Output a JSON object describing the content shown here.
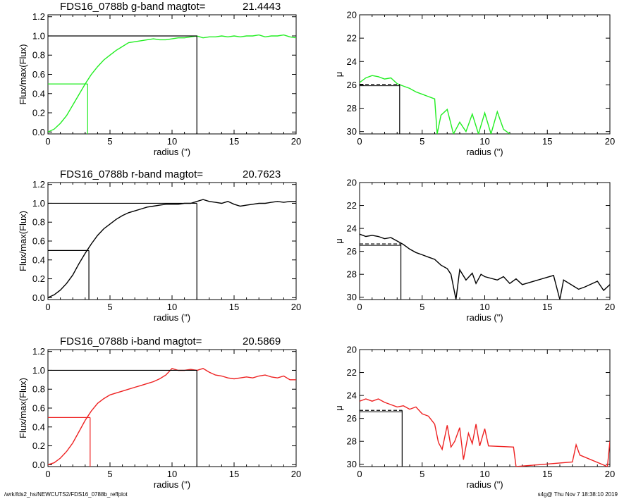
{
  "footer": {
    "path": "/wrk/fds2_hs/NEWCUTS2/FDS16_0788b_reffplot",
    "stamp": "s4g@  Thu Nov  7 18:38:10 2019"
  },
  "chart_data": [
    {
      "type": "line",
      "title_prefix": "FDS16_0788b g-band  magtot=",
      "title_value": "21.4443",
      "xlabel": "radius (\")",
      "ylabel": "Flux/max(Flux)",
      "xlim": [
        0,
        20
      ],
      "ylim": [
        -0.02,
        1.22
      ],
      "xticks": [
        0,
        5,
        10,
        15,
        20
      ],
      "yticks": [
        0.0,
        0.2,
        0.4,
        0.6,
        0.8,
        1.0,
        1.2
      ],
      "ytick_labels": [
        "0.0",
        "0.2",
        "0.4",
        "0.6",
        "0.8",
        "1.0",
        "1.2"
      ],
      "color": "#22ee22",
      "x": [
        0,
        0.5,
        1,
        1.5,
        2,
        2.5,
        3,
        3.5,
        4,
        4.5,
        5,
        5.5,
        6,
        6.5,
        7,
        7.5,
        8,
        8.5,
        9,
        9.5,
        10,
        10.5,
        11,
        11.5,
        12,
        12.5,
        13,
        13.5,
        14,
        14.5,
        15,
        15.5,
        16,
        16.5,
        17,
        17.5,
        18,
        18.5,
        19,
        19.5,
        20
      ],
      "y": [
        0.0,
        0.03,
        0.09,
        0.17,
        0.28,
        0.39,
        0.5,
        0.6,
        0.68,
        0.75,
        0.8,
        0.85,
        0.89,
        0.93,
        0.94,
        0.95,
        0.96,
        0.97,
        0.96,
        0.96,
        0.97,
        0.98,
        0.98,
        0.99,
        1.0,
        0.98,
        0.99,
        0.99,
        1.0,
        0.99,
        1.0,
        0.99,
        1.0,
        1.0,
        1.01,
        0.99,
        1.0,
        1.0,
        1.01,
        0.99,
        0.98
      ],
      "half_radius": 3.2,
      "half_value": 0.5,
      "total_radius": 12.0
    },
    {
      "type": "line",
      "title_prefix": "",
      "title_value": "",
      "xlabel": "radius (\")",
      "ylabel": "μ",
      "xlim": [
        0,
        20
      ],
      "ylim": [
        30.2,
        20
      ],
      "xticks": [
        0,
        5,
        10,
        15,
        20
      ],
      "yticks": [
        20,
        22,
        24,
        26,
        28,
        30
      ],
      "ytick_labels": [
        "20",
        "22",
        "24",
        "26",
        "28",
        "30"
      ],
      "color": "#22ee22",
      "x": [
        0,
        0.5,
        1,
        1.5,
        2,
        2.5,
        3,
        3.5,
        4,
        4.5,
        5,
        5.5,
        6,
        6.2,
        6.5,
        7,
        7.5,
        8,
        8.5,
        9,
        9.5,
        10,
        10.5,
        11,
        11.5,
        12
      ],
      "y": [
        25.8,
        25.4,
        25.2,
        25.3,
        25.5,
        25.4,
        25.9,
        26.1,
        26.3,
        26.6,
        26.8,
        27.0,
        27.2,
        30.2,
        28.6,
        28.1,
        30.2,
        29.2,
        30.0,
        28.5,
        30.2,
        28.4,
        30.2,
        28.3,
        29.8,
        30.2
      ],
      "mu_half": 25.95,
      "half_radius": 3.2
    },
    {
      "type": "line",
      "title_prefix": "FDS16_0788b r-band  magtot=",
      "title_value": "20.7623",
      "xlabel": "radius (\")",
      "ylabel": "Flux/max(Flux)",
      "xlim": [
        0,
        20
      ],
      "ylim": [
        -0.02,
        1.22
      ],
      "xticks": [
        0,
        5,
        10,
        15,
        20
      ],
      "yticks": [
        0.0,
        0.2,
        0.4,
        0.6,
        0.8,
        1.0,
        1.2
      ],
      "ytick_labels": [
        "0.0",
        "0.2",
        "0.4",
        "0.6",
        "0.8",
        "1.0",
        "1.2"
      ],
      "color": "#000000",
      "x": [
        0,
        0.5,
        1,
        1.5,
        2,
        2.5,
        3,
        3.5,
        4,
        4.5,
        5,
        5.5,
        6,
        6.5,
        7,
        7.5,
        8,
        8.5,
        9,
        9.5,
        10,
        10.5,
        11,
        11.5,
        12,
        12.5,
        13,
        13.5,
        14,
        14.5,
        15,
        15.5,
        16,
        16.5,
        17,
        17.5,
        18,
        18.5,
        19,
        19.5,
        20
      ],
      "y": [
        0.0,
        0.03,
        0.08,
        0.15,
        0.24,
        0.36,
        0.47,
        0.57,
        0.66,
        0.73,
        0.78,
        0.83,
        0.87,
        0.9,
        0.92,
        0.94,
        0.96,
        0.97,
        0.98,
        0.99,
        0.99,
        0.99,
        1.0,
        1.0,
        1.02,
        1.04,
        1.02,
        1.01,
        1.0,
        1.02,
        0.99,
        0.97,
        0.98,
        0.99,
        1.0,
        1.0,
        1.01,
        1.02,
        1.01,
        1.02,
        1.02
      ],
      "half_radius": 3.3,
      "half_value": 0.5,
      "total_radius": 12.0
    },
    {
      "type": "line",
      "title_prefix": "",
      "title_value": "",
      "xlabel": "radius (\")",
      "ylabel": "μ",
      "xlim": [
        0,
        20
      ],
      "ylim": [
        30.2,
        20
      ],
      "xticks": [
        0,
        5,
        10,
        15,
        20
      ],
      "yticks": [
        20,
        22,
        24,
        26,
        28,
        30
      ],
      "ytick_labels": [
        "20",
        "22",
        "24",
        "26",
        "28",
        "30"
      ],
      "color": "#000000",
      "x": [
        0,
        0.5,
        1,
        1.5,
        2,
        2.5,
        3,
        3.5,
        4,
        4.5,
        5,
        5.5,
        6,
        6.5,
        7,
        7.3,
        7.7,
        8,
        8.5,
        9,
        9.3,
        9.7,
        10,
        11,
        11.5,
        12,
        12.5,
        13,
        15.5,
        16,
        16.3,
        17.5,
        18,
        19,
        19.5,
        20
      ],
      "y": [
        24.5,
        24.7,
        24.6,
        24.7,
        24.9,
        24.8,
        25.1,
        25.4,
        25.8,
        26.1,
        26.3,
        26.5,
        26.7,
        27.2,
        27.5,
        28.0,
        30.2,
        27.6,
        28.5,
        27.9,
        28.8,
        28.0,
        28.2,
        28.5,
        28.2,
        28.8,
        28.4,
        28.9,
        28.1,
        30.2,
        28.5,
        29.3,
        29.1,
        28.6,
        29.4,
        28.9
      ],
      "mu_half": 25.35,
      "half_radius": 3.3
    },
    {
      "type": "line",
      "title_prefix": "FDS16_0788b i-band  magtot=",
      "title_value": "20.5869",
      "xlabel": "radius (\")",
      "ylabel": "Flux/max(Flux)",
      "xlim": [
        0,
        20
      ],
      "ylim": [
        -0.02,
        1.22
      ],
      "xticks": [
        0,
        5,
        10,
        15,
        20
      ],
      "yticks": [
        0.0,
        0.2,
        0.4,
        0.6,
        0.8,
        1.0,
        1.2
      ],
      "ytick_labels": [
        "0.0",
        "0.2",
        "0.4",
        "0.6",
        "0.8",
        "1.0",
        "1.2"
      ],
      "color": "#ee2222",
      "x": [
        0,
        0.5,
        1,
        1.5,
        2,
        2.5,
        3,
        3.5,
        4,
        4.5,
        5,
        5.5,
        6,
        6.5,
        7,
        7.5,
        8,
        8.5,
        9,
        9.5,
        10,
        10.5,
        11,
        11.5,
        12,
        12.5,
        13,
        13.5,
        14,
        14.5,
        15,
        15.5,
        16,
        16.5,
        17,
        17.5,
        18,
        18.5,
        19,
        19.5,
        20
      ],
      "y": [
        0.0,
        0.02,
        0.07,
        0.14,
        0.23,
        0.35,
        0.47,
        0.57,
        0.65,
        0.7,
        0.74,
        0.76,
        0.78,
        0.8,
        0.82,
        0.84,
        0.86,
        0.88,
        0.91,
        0.95,
        1.02,
        1.0,
        1.0,
        1.01,
        1.0,
        1.02,
        0.98,
        0.95,
        0.94,
        0.92,
        0.91,
        0.92,
        0.93,
        0.92,
        0.94,
        0.95,
        0.93,
        0.92,
        0.94,
        0.9,
        0.9
      ],
      "half_radius": 3.4,
      "half_value": 0.5,
      "total_radius": 12.0
    },
    {
      "type": "line",
      "title_prefix": "",
      "title_value": "",
      "xlabel": "radius (\")",
      "ylabel": "μ",
      "xlim": [
        0,
        20
      ],
      "ylim": [
        30.2,
        20
      ],
      "xticks": [
        0,
        5,
        10,
        15,
        20
      ],
      "yticks": [
        20,
        22,
        24,
        26,
        28,
        30
      ],
      "ytick_labels": [
        "20",
        "22",
        "24",
        "26",
        "28",
        "30"
      ],
      "color": "#ee2222",
      "x": [
        0,
        0.5,
        1,
        1.5,
        2,
        2.5,
        3,
        3.5,
        4,
        4.5,
        5,
        5.5,
        6,
        6.3,
        6.6,
        7,
        7.3,
        7.6,
        8,
        8.3,
        8.7,
        9,
        9.3,
        9.6,
        10,
        10.3,
        12.3,
        12.5,
        17,
        17.3,
        17.6,
        19.8,
        20
      ],
      "y": [
        24.5,
        24.3,
        24.5,
        24.3,
        24.6,
        24.8,
        25.0,
        24.9,
        25.2,
        25.0,
        25.6,
        25.8,
        26.5,
        28.1,
        28.7,
        26.6,
        28.5,
        28.0,
        26.8,
        29.6,
        27.3,
        28.2,
        26.5,
        28.4,
        26.9,
        28.4,
        28.5,
        30.2,
        29.8,
        28.3,
        29.2,
        30.2,
        28.0
      ],
      "mu_half": 25.3,
      "half_radius": 3.4
    }
  ]
}
